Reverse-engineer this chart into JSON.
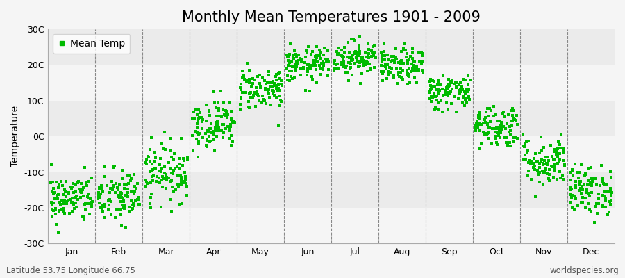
{
  "title": "Monthly Mean Temperatures 1901 - 2009",
  "ylabel": "Temperature",
  "footer_left": "Latitude 53.75 Longitude 66.75",
  "footer_right": "worldspecies.org",
  "legend_label": "Mean Temp",
  "dot_color": "#00bb00",
  "bg_color": "#f5f5f5",
  "band_light": "#f5f5f5",
  "band_dark": "#ebebeb",
  "vline_color": "#888888",
  "ylim": [
    -30,
    30
  ],
  "ytick_labels": [
    "30C",
    "20C",
    "10C",
    "0C",
    "-10C",
    "-20C",
    "-30C"
  ],
  "ytick_values": [
    30,
    20,
    10,
    0,
    -10,
    -20,
    -30
  ],
  "months": [
    "Jan",
    "Feb",
    "Mar",
    "Apr",
    "May",
    "Jun",
    "Jul",
    "Aug",
    "Sep",
    "Oct",
    "Nov",
    "Dec"
  ],
  "mean_temps": [
    -17.5,
    -17.0,
    -10.0,
    3.5,
    13.5,
    20.0,
    22.0,
    19.5,
    12.5,
    3.0,
    -7.0,
    -15.0
  ],
  "std_temps": [
    3.5,
    4.0,
    4.0,
    3.5,
    3.0,
    2.5,
    2.5,
    2.5,
    2.5,
    3.0,
    3.5,
    3.5
  ],
  "n_years": 109,
  "marker_size": 9,
  "title_fontsize": 15,
  "axis_fontsize": 10,
  "tick_fontsize": 9,
  "footer_fontsize": 8.5
}
